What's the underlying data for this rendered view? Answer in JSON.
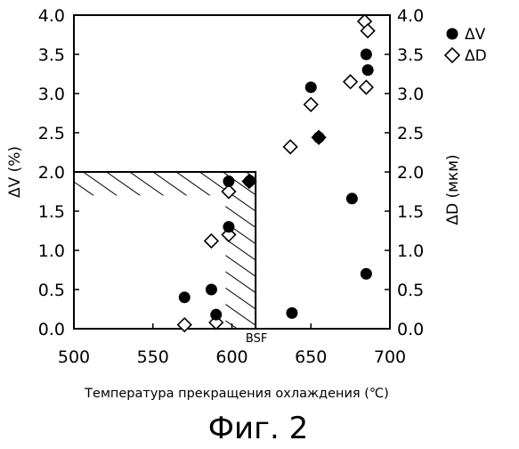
{
  "chart_data": {
    "type": "scatter",
    "xlabel": "Температура прекращения охлаждения (℃)",
    "ylabel_left": "ΔV (%)",
    "ylabel_right": "ΔD (мкм)",
    "xlim": [
      500,
      700
    ],
    "ylim_left": [
      0,
      4
    ],
    "ylim_right": [
      0,
      4
    ],
    "x_ticks": [
      "500",
      "550",
      "600",
      "650",
      "700"
    ],
    "y_ticks_left": [
      "0.0",
      "0.5",
      "1.0",
      "1.5",
      "2.0",
      "2.5",
      "3.0",
      "3.5",
      "4.0"
    ],
    "y_ticks_right": [
      "0.0",
      "0.5",
      "1.0",
      "1.5",
      "2.0",
      "2.5",
      "3.0",
      "3.5",
      "4.0"
    ],
    "grid": false,
    "legend_position": "top-right",
    "series": [
      {
        "name": "ΔV",
        "marker": "filled-circle",
        "axis": "left",
        "points": [
          {
            "x": 570,
            "y": 0.4
          },
          {
            "x": 587,
            "y": 0.5
          },
          {
            "x": 590,
            "y": 0.18
          },
          {
            "x": 598,
            "y": 1.3
          },
          {
            "x": 598,
            "y": 1.88
          },
          {
            "x": 611,
            "y": 1.88
          },
          {
            "x": 638,
            "y": 0.2
          },
          {
            "x": 650,
            "y": 3.08
          },
          {
            "x": 655,
            "y": 2.44
          },
          {
            "x": 676,
            "y": 1.66
          },
          {
            "x": 685,
            "y": 3.5
          },
          {
            "x": 686,
            "y": 3.3
          },
          {
            "x": 685,
            "y": 0.7
          }
        ]
      },
      {
        "name": "ΔD",
        "marker": "open-diamond",
        "axis": "right",
        "points": [
          {
            "x": 570,
            "y": 0.05
          },
          {
            "x": 587,
            "y": 1.12
          },
          {
            "x": 590,
            "y": 0.08
          },
          {
            "x": 598,
            "y": 1.2
          },
          {
            "x": 598,
            "y": 1.75
          },
          {
            "x": 611,
            "y": 1.88
          },
          {
            "x": 637,
            "y": 2.32
          },
          {
            "x": 650,
            "y": 2.86
          },
          {
            "x": 655,
            "y": 2.44
          },
          {
            "x": 675,
            "y": 3.15
          },
          {
            "x": 685,
            "y": 3.08
          },
          {
            "x": 684,
            "y": 3.92
          },
          {
            "x": 686,
            "y": 3.8
          }
        ]
      }
    ],
    "annotations": [
      {
        "text": "BSF",
        "x": 615,
        "y": 0
      }
    ],
    "hatched_region": {
      "x_from": 500,
      "x_to": 615,
      "y_from": 0,
      "y_to": 2.0
    }
  },
  "caption": "Фиг. 2"
}
